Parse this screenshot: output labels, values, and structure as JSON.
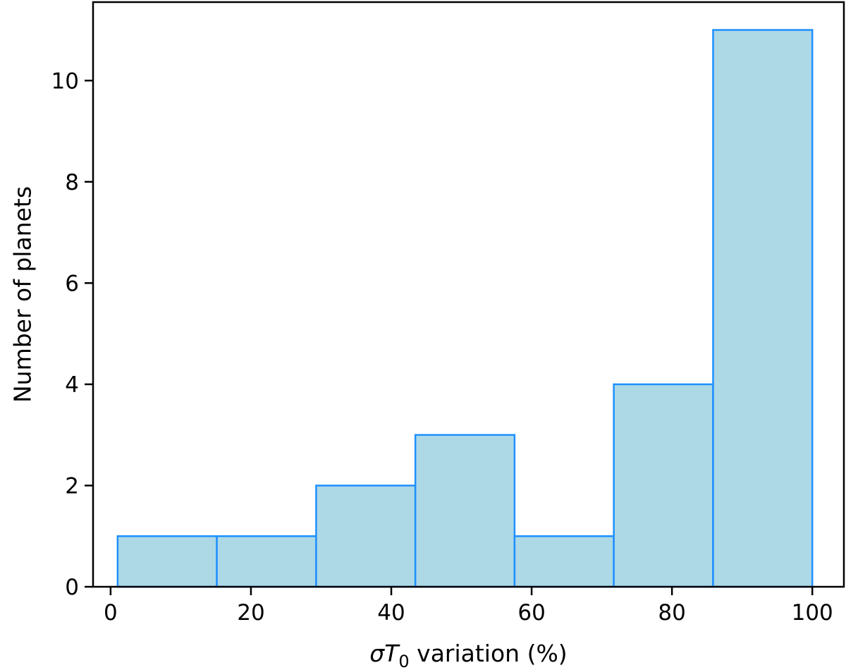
{
  "chart_data": {
    "type": "bar",
    "subtype": "histogram",
    "title": "",
    "xlabel_parts": {
      "sigma": "σ",
      "T": "T",
      "subscript": "0",
      "rest": " variation (%)"
    },
    "ylabel": "Number of planets",
    "bin_edges": [
      1.0,
      15.14,
      29.29,
      43.43,
      57.57,
      71.71,
      85.86,
      100.0
    ],
    "values": [
      1,
      1,
      2,
      3,
      1,
      4,
      11
    ],
    "xlim": [
      -2.5,
      104.5
    ],
    "ylim": [
      0,
      11.55
    ],
    "xticks": [
      0,
      20,
      40,
      60,
      80,
      100
    ],
    "yticks": [
      0,
      2,
      4,
      6,
      8,
      10
    ],
    "grid": false,
    "colors": {
      "bar_fill": "#add8e6",
      "bar_edge": "#1e90ff",
      "axis": "#000000"
    }
  }
}
